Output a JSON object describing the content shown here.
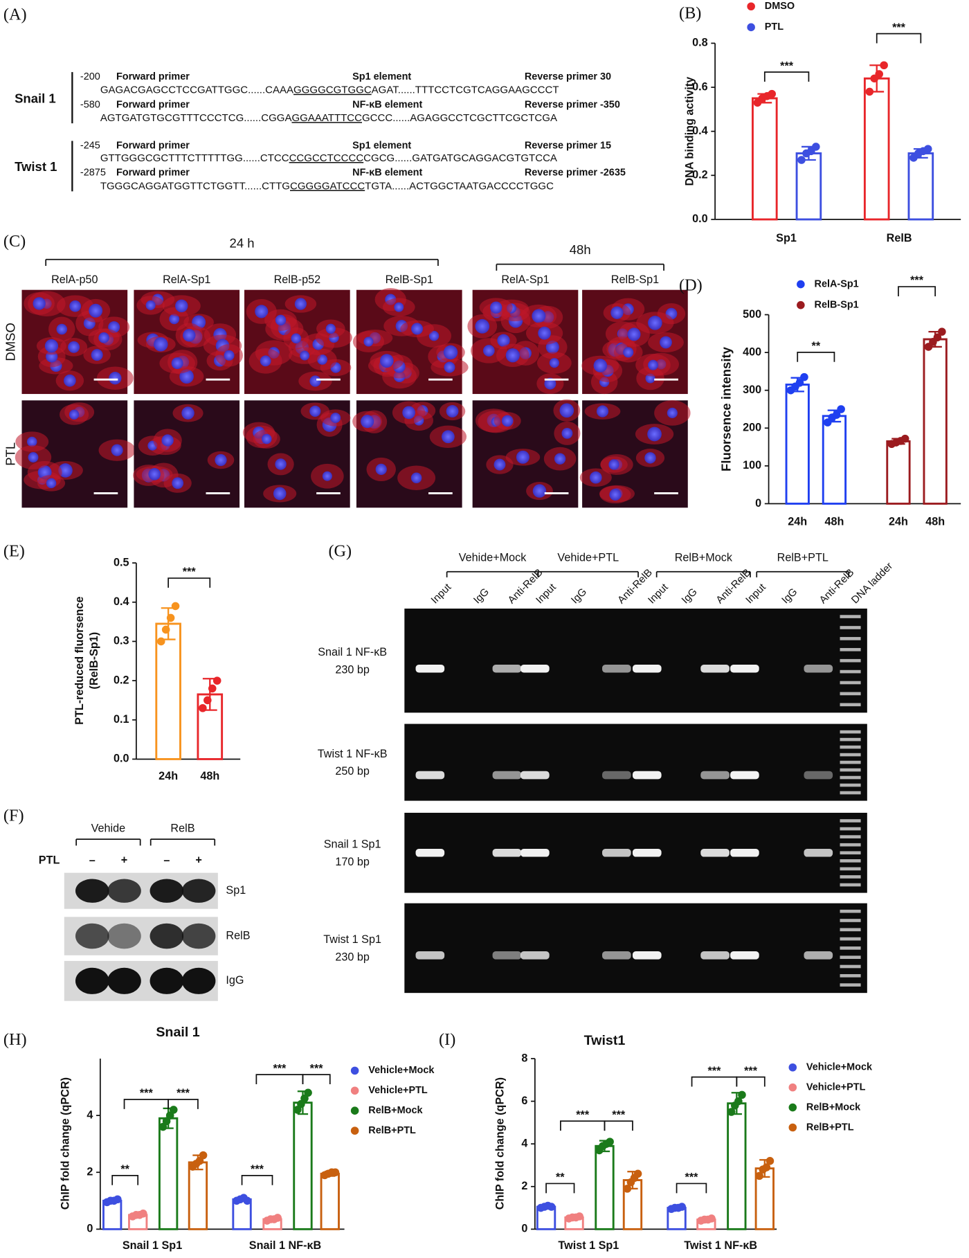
{
  "panel_a": {
    "label": "(A)",
    "genes": [
      {
        "name": "Snail 1",
        "rows": [
          {
            "start": "-200",
            "forward": "Forward primer",
            "element": "Sp1 element",
            "reverse": "Reverse primer  30",
            "seq": [
              "GAGACGAGCCTCCGATTGGC......CAAA",
              "GGGGCGTGGC",
              "AGAT......TTTCCTCGTCAGGAAGCCCT"
            ]
          },
          {
            "start": "-580",
            "forward": "Forward primer",
            "element": "NF-κB element",
            "reverse": "Reverse primer  -350",
            "seq": [
              "AGTGATGTGCGTTTCCCTCG......CGGA",
              "GGAAATTTCC",
              "GCCC......AGAGGCCTCGCTTCGCTCGA"
            ]
          }
        ]
      },
      {
        "name": "Twist 1",
        "rows": [
          {
            "start": "-245",
            "forward": "Forward primer",
            "element": "Sp1 element",
            "reverse": "Reverse primer  15",
            "seq": [
              "GTTGGGCGCTTTCTTTTTGG......CTCC",
              "CCGCCTCCCC",
              "CGCG......GATGATGCAGGACGTGTCCA"
            ]
          },
          {
            "start": "-2875",
            "forward": "Forward primer",
            "element": "NF-κB element",
            "reverse": "Reverse primer  -2635",
            "seq": [
              "TGGGCAGGATGGTTCTGGTT......CTTG",
              "CGGGGATCCC",
              "TGTA......ACTGGCTAATGACCCCTGGC"
            ]
          }
        ]
      }
    ]
  },
  "panel_c": {
    "label": "(C)",
    "groups": [
      {
        "title": "24 h",
        "columns": [
          "RelA-p50",
          "RelA-Sp1",
          "RelB-p52",
          "RelB-Sp1"
        ]
      },
      {
        "title": "48h",
        "columns": [
          "RelA-Sp1",
          "RelB-Sp1"
        ]
      }
    ],
    "rows": [
      "DMSO",
      "PTL"
    ]
  },
  "panel_f": {
    "label": "(F)",
    "groups": [
      "Vehide",
      "RelB"
    ],
    "treatment": "PTL",
    "lanes": [
      "–",
      "+",
      "–",
      "+"
    ],
    "rows": [
      "Sp1",
      "RelB",
      "IgG"
    ]
  },
  "panel_g": {
    "label": "(G)",
    "groups": [
      "Vehide+Mock",
      "Vehide+PTL",
      "RelB+Mock",
      "RelB+PTL"
    ],
    "lanes": [
      "Input",
      "IgG",
      "Anti-RelB",
      "Input",
      "IgG",
      "Anti-RelB",
      "Input",
      "IgG",
      "Anti-RelB",
      "Input",
      "IgG",
      "Anti-RelB",
      "DNA ladder"
    ],
    "rows": [
      [
        "Snail 1 NF-κB",
        "230 bp"
      ],
      [
        "Twist 1 NF-κB",
        "250 bp"
      ],
      [
        "Snail 1 Sp1",
        "170 bp"
      ],
      [
        "Twist 1 Sp1",
        "230 bp"
      ]
    ]
  },
  "chart_data": [
    {
      "type": "bar",
      "panel": "(B)",
      "ylabel": "DNA binding activity",
      "categories": [
        "Sp1",
        "RelB"
      ],
      "ylim": [
        0,
        0.8
      ],
      "yticks": [
        {
          "value": 0,
          "label": "0.0"
        },
        {
          "value": 0.2,
          "label": "0.2"
        },
        {
          "value": 0.4,
          "label": "0.4"
        },
        {
          "value": 0.6,
          "label": "0.6"
        },
        {
          "value": 0.8,
          "label": "0.8"
        }
      ],
      "series": [
        {
          "name": "DMSO",
          "color": "#e8262a",
          "values": [
            0.55,
            0.64
          ],
          "errors": [
            0.02,
            0.06
          ],
          "points": [
            [
              0.53,
              0.55,
              0.56,
              0.57
            ],
            [
              0.58,
              0.64,
              0.66,
              0.7
            ]
          ]
        },
        {
          "name": "PTL",
          "color": "#3d4fe0",
          "values": [
            0.3,
            0.3
          ],
          "errors": [
            0.03,
            0.02
          ],
          "points": [
            [
              0.27,
              0.3,
              0.31,
              0.33
            ],
            [
              0.28,
              0.3,
              0.31,
              0.32
            ]
          ]
        }
      ],
      "annotations": [
        "***",
        "***"
      ]
    },
    {
      "type": "bar",
      "panel": "(D)",
      "ylabel": "Fluorsence intensity",
      "categories": [
        "24h",
        "48h",
        "24h",
        "48h"
      ],
      "ylim": [
        0,
        500
      ],
      "yticks": [
        0,
        100,
        200,
        300,
        400,
        500
      ],
      "series": [
        {
          "name": "RelA-Sp1",
          "color": "#1f3ff0",
          "values": [
            315,
            232,
            null,
            null
          ],
          "errors": [
            18,
            15,
            null,
            null
          ],
          "points": [
            [
              300,
              310,
              320,
              335
            ],
            [
              215,
              228,
              235,
              250
            ],
            null,
            null
          ]
        },
        {
          "name": "RelB-Sp1",
          "color": "#9b1b1f",
          "values": [
            null,
            null,
            165,
            435
          ],
          "errors": [
            null,
            null,
            7,
            20
          ],
          "points": [
            null,
            null,
            [
              158,
              162,
              166,
              172
            ],
            [
              415,
              428,
              440,
              455
            ]
          ]
        }
      ],
      "annotations": [
        "**",
        "***"
      ]
    },
    {
      "type": "bar",
      "panel": "(E)",
      "ylabel": [
        "PTL-reduced fluorsence",
        "(RelB-Sp1)"
      ],
      "categories": [
        "24h",
        "48h"
      ],
      "ylim": [
        0,
        0.5
      ],
      "yticks": [
        {
          "value": 0,
          "label": "0.0"
        },
        {
          "value": 0.1,
          "label": "0.1"
        },
        {
          "value": 0.2,
          "label": "0.2"
        },
        {
          "value": 0.3,
          "label": "0.3"
        },
        {
          "value": 0.4,
          "label": "0.4"
        },
        {
          "value": 0.5,
          "label": "0.5"
        }
      ],
      "values": [
        0.345,
        0.165
      ],
      "errors": [
        0.04,
        0.04
      ],
      "colors": [
        "#f7931e",
        "#e8262a"
      ],
      "points": [
        [
          0.3,
          0.33,
          0.36,
          0.39
        ],
        [
          0.13,
          0.15,
          0.18,
          0.2
        ]
      ],
      "annotations": [
        "***"
      ]
    },
    {
      "type": "bar",
      "panel": "(H)",
      "title": "Snail 1",
      "ylabel": "ChIP fold change (qPCR)",
      "categories": [
        "Snail 1 Sp1",
        "Snail 1 NF-κB"
      ],
      "ylim": [
        0,
        6
      ],
      "yticks": [
        0,
        2,
        4
      ],
      "series": [
        {
          "name": "Vehicle+Mock",
          "color": "#3d4fe0",
          "values": [
            1.0,
            1.05
          ],
          "errors": [
            0.06,
            0.06
          ],
          "points": [
            [
              0.95,
              1.0,
              1.0,
              1.05
            ],
            [
              1.0,
              1.05,
              1.1,
              1.0
            ]
          ]
        },
        {
          "name": "Vehicle+PTL",
          "color": "#f08080",
          "values": [
            0.5,
            0.35
          ],
          "errors": [
            0.05,
            0.05
          ],
          "points": [
            [
              0.45,
              0.5,
              0.5,
              0.55
            ],
            [
              0.3,
              0.35,
              0.35,
              0.4
            ]
          ]
        },
        {
          "name": "RelB+Mock",
          "color": "#1a7a1a",
          "values": [
            3.9,
            4.45
          ],
          "errors": [
            0.35,
            0.4
          ],
          "points": [
            [
              3.6,
              3.8,
              4.0,
              4.2
            ],
            [
              4.2,
              4.4,
              4.6,
              4.8
            ]
          ]
        },
        {
          "name": "RelB+PTL",
          "color": "#c8600f",
          "values": [
            2.35,
            1.95
          ],
          "errors": [
            0.25,
            0.08
          ],
          "points": [
            [
              2.2,
              2.3,
              2.4,
              2.6
            ],
            [
              1.9,
              1.95,
              2.0,
              2.0
            ]
          ]
        }
      ],
      "annotations": [
        "**",
        "***",
        "***",
        "***",
        "***",
        "***"
      ]
    },
    {
      "type": "bar",
      "panel": "(I)",
      "title": "Twist1",
      "ylabel": "ChIP fold change (qPCR)",
      "categories": [
        "Twist 1 Sp1",
        "Twist 1 NF-κB"
      ],
      "ylim": [
        0,
        8
      ],
      "yticks": [
        0,
        2,
        4,
        6,
        8
      ],
      "series": [
        {
          "name": "Vehicle+Mock",
          "color": "#3d4fe0",
          "values": [
            1.05,
            1.0
          ],
          "errors": [
            0.08,
            0.06
          ],
          "points": [
            [
              1.0,
              1.05,
              1.1,
              1.05
            ],
            [
              0.95,
              1.0,
              1.0,
              1.05
            ]
          ]
        },
        {
          "name": "Vehicle+PTL",
          "color": "#f08080",
          "values": [
            0.55,
            0.45
          ],
          "errors": [
            0.05,
            0.05
          ],
          "points": [
            [
              0.5,
              0.55,
              0.55,
              0.6
            ],
            [
              0.4,
              0.45,
              0.45,
              0.5
            ]
          ]
        },
        {
          "name": "RelB+Mock",
          "color": "#1a7a1a",
          "values": [
            3.9,
            5.9
          ],
          "errors": [
            0.25,
            0.5
          ],
          "points": [
            [
              3.7,
              3.9,
              4.0,
              4.1
            ],
            [
              5.5,
              5.8,
              6.0,
              6.3
            ]
          ]
        },
        {
          "name": "RelB+PTL",
          "color": "#c8600f",
          "values": [
            2.3,
            2.85
          ],
          "errors": [
            0.4,
            0.4
          ],
          "points": [
            [
              1.9,
              2.2,
              2.4,
              2.6
            ],
            [
              2.5,
              2.8,
              2.9,
              3.2
            ]
          ]
        }
      ],
      "annotations": [
        "**",
        "***",
        "***",
        "***",
        "***",
        "***"
      ]
    }
  ]
}
